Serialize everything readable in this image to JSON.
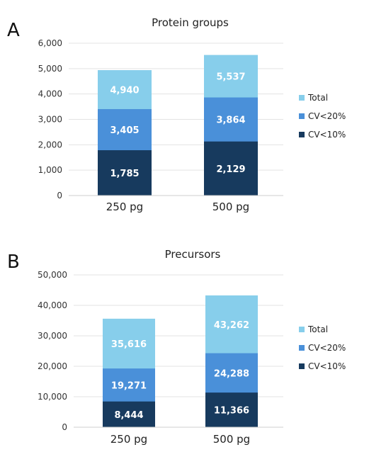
{
  "panels": [
    "A",
    "B"
  ],
  "chart_data": [
    {
      "type": "bar",
      "stacked": false,
      "overlay": true,
      "title": "Protein groups",
      "categories": [
        "250 pg",
        "500 pg"
      ],
      "ylim": [
        0,
        6000
      ],
      "yticks": [
        "0",
        "1,000",
        "2,000",
        "3,000",
        "4,000",
        "5,000",
        "6,000"
      ],
      "ytick_values": [
        0,
        1000,
        2000,
        3000,
        4000,
        5000,
        6000
      ],
      "grid": true,
      "legend_position": "right",
      "series": [
        {
          "name": "Total",
          "values": [
            4940,
            5537
          ],
          "labels": [
            "4,940",
            "5,537"
          ],
          "color": "#87ceeb"
        },
        {
          "name": "CV<20%",
          "values": [
            3405,
            3864
          ],
          "labels": [
            "3,405",
            "3,864"
          ],
          "color": "#4a90d9"
        },
        {
          "name": "CV<10%",
          "values": [
            1785,
            2129
          ],
          "labels": [
            "1,785",
            "2,129"
          ],
          "color": "#173a5e"
        }
      ]
    },
    {
      "type": "bar",
      "stacked": false,
      "overlay": true,
      "title": "Precursors",
      "categories": [
        "250 pg",
        "500 pg"
      ],
      "ylim": [
        0,
        50000
      ],
      "yticks": [
        "0",
        "10,000",
        "20,000",
        "30,000",
        "40,000",
        "50,000"
      ],
      "ytick_values": [
        0,
        10000,
        20000,
        30000,
        40000,
        50000
      ],
      "grid": true,
      "legend_position": "right",
      "series": [
        {
          "name": "Total",
          "values": [
            35616,
            43262
          ],
          "labels": [
            "35,616",
            "43,262"
          ],
          "color": "#87ceeb"
        },
        {
          "name": "CV<20%",
          "values": [
            19271,
            24288
          ],
          "labels": [
            "19,271",
            "24,288"
          ],
          "color": "#4a90d9"
        },
        {
          "name": "CV<10%",
          "values": [
            8444,
            11366
          ],
          "labels": [
            "8,444",
            "11,366"
          ],
          "color": "#173a5e"
        }
      ]
    }
  ]
}
